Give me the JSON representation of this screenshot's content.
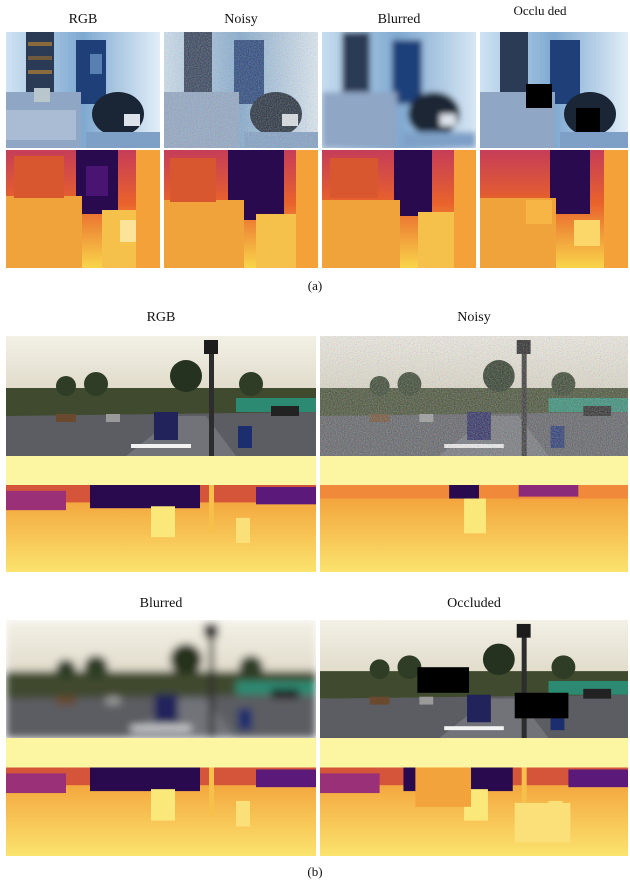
{
  "figure_a": {
    "col_labels": [
      "RGB",
      "Noisy",
      "Blurred",
      "Occlu ded"
    ],
    "caption": "(a)"
  },
  "figure_b": {
    "top_labels": [
      "RGB",
      "Noisy"
    ],
    "bottom_labels": [
      "Blurred",
      "Occluded"
    ],
    "caption": "(b)"
  },
  "colors": {
    "depth_near": "#f7c843",
    "depth_mid": "#e8622b",
    "depth_far": "#2a0a4e",
    "depth_pale": "#fcf6a2"
  }
}
